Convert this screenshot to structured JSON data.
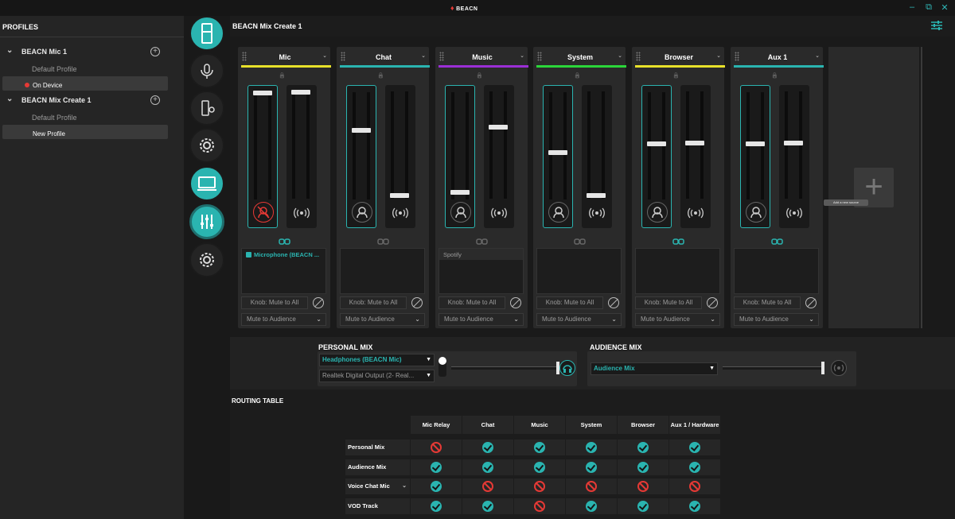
{
  "app": {
    "brand": "BEACN",
    "page_title": "BEACN Mix Create 1"
  },
  "sidebar": {
    "title": "PROFILES",
    "groups": [
      {
        "label": "BEACN Mic 1",
        "items": [
          "Default Profile",
          "On Device"
        ]
      },
      {
        "label": "BEACN Mix Create 1",
        "items": [
          "Default Profile",
          "New Profile"
        ]
      }
    ]
  },
  "channels": [
    {
      "name": "Mic",
      "color": "#e8e12a",
      "left_level": 1.0,
      "right_level": 1.0,
      "left_muted": true,
      "linked": true,
      "sources": [
        {
          "label": "Microphone (BEACN ...",
          "checked": true
        }
      ]
    },
    {
      "name": "Chat",
      "color": "#2ab4b0",
      "left_level": 0.64,
      "right_level": 0.0,
      "left_muted": false,
      "linked": false,
      "sources": []
    },
    {
      "name": "Music",
      "color": "#9b2fd6",
      "left_level": 0.04,
      "right_level": 0.66,
      "left_muted": false,
      "linked": false,
      "sources": [
        {
          "label": "Spotify",
          "checked": false
        }
      ]
    },
    {
      "name": "System",
      "color": "#2bd63a",
      "left_level": 0.42,
      "right_level": 0.0,
      "left_muted": false,
      "linked": false,
      "sources": []
    },
    {
      "name": "Browser",
      "color": "#e8e12a",
      "left_level": 0.51,
      "right_level": 0.51,
      "left_muted": false,
      "linked": true,
      "sources": []
    },
    {
      "name": "Aux 1",
      "color": "#2ab4b0",
      "left_level": 0.51,
      "right_level": 0.51,
      "left_muted": false,
      "linked": true,
      "sources": []
    }
  ],
  "strip_controls": {
    "knob_label": "Knob: Mute to All",
    "audience_label": "Mute to Audience"
  },
  "add_source": {
    "tooltip": "Add a new source"
  },
  "personal_mix": {
    "title": "PERSONAL MIX",
    "output": "Headphones (BEACN Mic)",
    "secondary_output": "Realtek Digital Output (2- Real...",
    "level": 1.0
  },
  "audience_mix": {
    "title": "AUDIENCE MIX",
    "output": "Audience Mix",
    "level": 1.0
  },
  "routing": {
    "title": "ROUTING TABLE",
    "columns": [
      "Mic Relay",
      "Chat",
      "Music",
      "System",
      "Browser",
      "Aux 1 / Hardware"
    ],
    "rows": [
      {
        "label": "Personal Mix",
        "values": [
          false,
          true,
          true,
          true,
          true,
          true
        ]
      },
      {
        "label": "Audience Mix",
        "values": [
          true,
          true,
          true,
          true,
          true,
          true
        ]
      },
      {
        "label": "Voice Chat Mic",
        "values": [
          true,
          false,
          false,
          false,
          false,
          false
        ]
      },
      {
        "label": "VOD Track",
        "values": [
          true,
          true,
          false,
          true,
          true,
          true
        ]
      }
    ]
  },
  "icons": [
    "mixer-device-icon",
    "mic-settings-icon",
    "device-light-icon",
    "gear-icon",
    "monitor-icon",
    "sliders-icon",
    "gear-icon"
  ]
}
